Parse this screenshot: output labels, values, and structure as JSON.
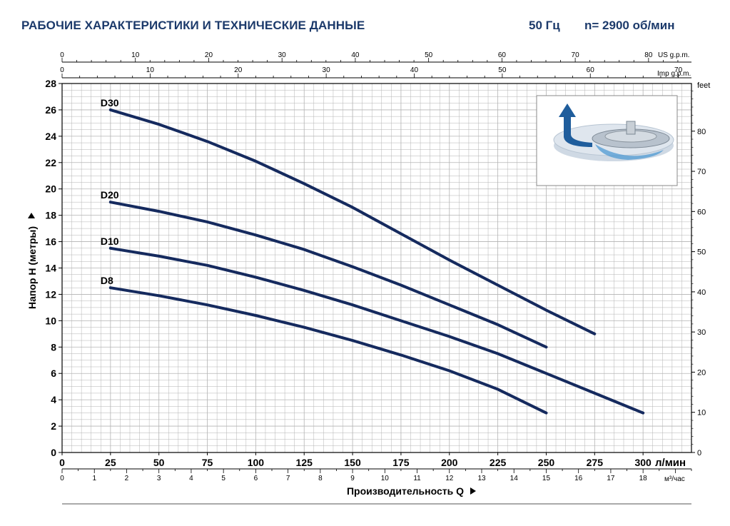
{
  "header": {
    "title": "РАБОЧИЕ ХАРАКТЕРИСТИКИ И ТЕХНИЧЕСКИЕ ДАННЫЕ",
    "frequency": "50 Гц",
    "speed": "n= 2900 об/мин"
  },
  "colors": {
    "curve": "#152a5e",
    "grid": "#b3b3b3",
    "axis": "#000000",
    "title": "#1c3a6b"
  },
  "inset_image": {
    "icon": "impeller-illustration-icon"
  },
  "chart_data": {
    "type": "line",
    "grid": true,
    "x": {
      "label": "Производительность Q",
      "unit": "л/мин",
      "range": [
        0,
        325
      ],
      "ticks": [
        0,
        25,
        50,
        75,
        100,
        125,
        150,
        175,
        200,
        225,
        250,
        275,
        300
      ]
    },
    "x_m3h": {
      "unit": "м³/час",
      "ticks": [
        0,
        1,
        2,
        3,
        4,
        5,
        6,
        7,
        8,
        9,
        10,
        11,
        12,
        13,
        14,
        15,
        16,
        17,
        18
      ]
    },
    "x_usgpm": {
      "unit": "US g.p.m.",
      "ticks": [
        0,
        10,
        20,
        30,
        40,
        50,
        60,
        70,
        80
      ]
    },
    "x_impgpm": {
      "unit": "Imp g.p.m.",
      "ticks": [
        0,
        10,
        20,
        30,
        40,
        50,
        60,
        70
      ]
    },
    "y": {
      "label": "Напор H (метры)",
      "range": [
        0,
        28
      ],
      "ticks": [
        0,
        2,
        4,
        6,
        8,
        10,
        12,
        14,
        16,
        18,
        20,
        22,
        24,
        26,
        28
      ]
    },
    "y_feet": {
      "unit": "feet",
      "ticks": [
        0,
        10,
        20,
        30,
        40,
        50,
        60,
        70,
        80
      ]
    },
    "series": [
      {
        "name": "D30",
        "x": [
          25,
          50,
          75,
          100,
          125,
          150,
          175,
          200,
          225,
          250,
          275
        ],
        "y": [
          26,
          24.9,
          23.6,
          22.1,
          20.4,
          18.6,
          16.6,
          14.6,
          12.7,
          10.8,
          9
        ]
      },
      {
        "name": "D20",
        "x": [
          25,
          50,
          75,
          100,
          125,
          150,
          175,
          200,
          225,
          250
        ],
        "y": [
          19,
          18.3,
          17.5,
          16.5,
          15.4,
          14.1,
          12.7,
          11.2,
          9.7,
          8
        ]
      },
      {
        "name": "D10",
        "x": [
          25,
          50,
          75,
          100,
          125,
          150,
          175,
          200,
          225,
          250,
          275,
          300
        ],
        "y": [
          15.5,
          14.9,
          14.2,
          13.3,
          12.3,
          11.2,
          10,
          8.8,
          7.5,
          6,
          4.5,
          3
        ]
      },
      {
        "name": "D8",
        "x": [
          25,
          50,
          75,
          100,
          125,
          150,
          175,
          200,
          225,
          250
        ],
        "y": [
          12.5,
          11.9,
          11.2,
          10.4,
          9.5,
          8.5,
          7.4,
          6.2,
          4.8,
          3
        ]
      }
    ]
  }
}
